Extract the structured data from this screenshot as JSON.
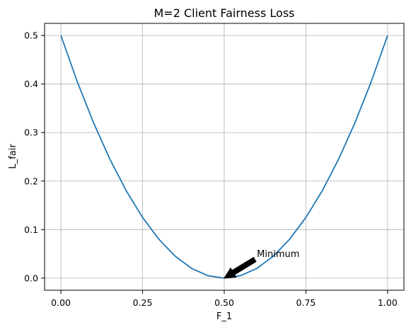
{
  "chart_data": {
    "type": "line",
    "title": "M=2 Client Fairness Loss",
    "xlabel": "F_1",
    "ylabel": "L_fair",
    "xlim": [
      -0.05,
      1.05
    ],
    "ylim": [
      -0.025,
      0.525
    ],
    "xticks": [
      0.0,
      0.25,
      0.5,
      0.75,
      1.0
    ],
    "xtick_labels": [
      "0.00",
      "0.25",
      "0.50",
      "0.75",
      "1.00"
    ],
    "yticks": [
      0.0,
      0.1,
      0.2,
      0.3,
      0.4,
      0.5
    ],
    "ytick_labels": [
      "0.0",
      "0.1",
      "0.2",
      "0.3",
      "0.4",
      "0.5"
    ],
    "grid": true,
    "series": [
      {
        "color": "#1f77b4",
        "x": [
          0.0,
          0.05,
          0.1,
          0.15,
          0.2,
          0.25,
          0.3,
          0.35,
          0.4,
          0.45,
          0.5,
          0.55,
          0.6,
          0.65,
          0.7,
          0.75,
          0.8,
          0.85,
          0.9,
          0.95,
          1.0
        ],
        "y": [
          0.5,
          0.405,
          0.32,
          0.245,
          0.18,
          0.125,
          0.08,
          0.045,
          0.02,
          0.005,
          0.0,
          0.005,
          0.02,
          0.045,
          0.08,
          0.125,
          0.18,
          0.245,
          0.32,
          0.405,
          0.5
        ]
      }
    ],
    "annotations": [
      {
        "text": "Minimum",
        "point": [
          0.5,
          0.0
        ],
        "text_at": [
          0.6,
          0.05
        ]
      }
    ]
  }
}
